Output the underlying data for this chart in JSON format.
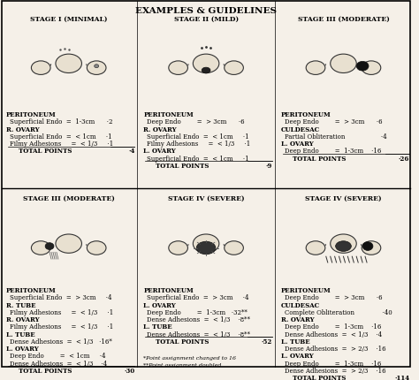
{
  "title": "EXAMPLES & GUIDELINES",
  "background_color": "#f5f0e8",
  "border_color": "#000000",
  "sections": [
    {
      "stage": "STAGE I (MINIMAL)",
      "col": 0,
      "row": 0,
      "text_lines": [
        {
          "text": "PERITONEUM",
          "bold": true,
          "indent": 0
        },
        {
          "text": "Superficial Endo  =  1-3cm      ·2",
          "bold": false,
          "indent": 1
        },
        {
          "text": "R. OVARY",
          "bold": true,
          "indent": 0
        },
        {
          "text": "Superficial Endo  =  < 1cm     ·1",
          "bold": false,
          "indent": 1
        },
        {
          "text": "Filmy Adhesions     =  < 1/3     ·1",
          "bold": false,
          "indent": 1
        },
        {
          "text": "TOTAL POINTS                         ·4",
          "bold": true,
          "indent": 2
        }
      ]
    },
    {
      "stage": "STAGE II (MILD)",
      "col": 1,
      "row": 0,
      "text_lines": [
        {
          "text": "PERITONEUM",
          "bold": true,
          "indent": 0
        },
        {
          "text": "Deep Endo        =  > 3cm      ·6",
          "bold": false,
          "indent": 1
        },
        {
          "text": "R. OVARY",
          "bold": true,
          "indent": 0
        },
        {
          "text": "Superficial Endo  =  < 1cm     ·1",
          "bold": false,
          "indent": 1
        },
        {
          "text": "Filmy Adhesions     =  < 1/3     ·1",
          "bold": false,
          "indent": 1
        },
        {
          "text": "L. OVARY",
          "bold": true,
          "indent": 0
        },
        {
          "text": "Superficial Endo  =  < 1cm     ·1",
          "bold": false,
          "indent": 1
        },
        {
          "text": "TOTAL POINTS                         ·9",
          "bold": true,
          "indent": 2
        }
      ]
    },
    {
      "stage": "STAGE III (MODERATE)",
      "col": 2,
      "row": 0,
      "text_lines": [
        {
          "text": "PERITONEUM",
          "bold": true,
          "indent": 0
        },
        {
          "text": "Deep Endo        =  > 3cm      ·6",
          "bold": false,
          "indent": 1
        },
        {
          "text": "CULDESAC",
          "bold": true,
          "indent": 0
        },
        {
          "text": "Partial Obliteration                  ·4",
          "bold": false,
          "indent": 1
        },
        {
          "text": "L. OVARY",
          "bold": true,
          "indent": 0
        },
        {
          "text": "Deep Endo        =  1-3cm    ·16",
          "bold": false,
          "indent": 1
        },
        {
          "text": "TOTAL POINTS                       ·26",
          "bold": true,
          "indent": 2
        }
      ]
    },
    {
      "stage": "STAGE III (MODERATE)",
      "col": 0,
      "row": 1,
      "text_lines": [
        {
          "text": "PERITONEUM",
          "bold": true,
          "indent": 0
        },
        {
          "text": "Superficial Endo  =  > 3cm     ·4",
          "bold": false,
          "indent": 1
        },
        {
          "text": "R. TUBE",
          "bold": true,
          "indent": 0
        },
        {
          "text": "Filmy Adhesions     =  < 1/3     ·1",
          "bold": false,
          "indent": 1
        },
        {
          "text": "R. OVARY",
          "bold": true,
          "indent": 0
        },
        {
          "text": "Filmy Adhesions     =  < 1/3     ·1",
          "bold": false,
          "indent": 1
        },
        {
          "text": "L. TUBE",
          "bold": true,
          "indent": 0
        },
        {
          "text": "Dense Adhesions  =  < 1/3   ·16*",
          "bold": false,
          "indent": 1
        },
        {
          "text": "L. OVARY",
          "bold": true,
          "indent": 0
        },
        {
          "text": "Deep Endo        =  < 1cm     ·4",
          "bold": false,
          "indent": 1
        },
        {
          "text": "Dense Adhesions  =  < 1/3    ·4",
          "bold": false,
          "indent": 1
        },
        {
          "text": "TOTAL POINTS                       ·30",
          "bold": true,
          "indent": 2
        }
      ]
    },
    {
      "stage": "STAGE IV (SEVERE)",
      "col": 1,
      "row": 1,
      "text_lines": [
        {
          "text": "PERITONEUM",
          "bold": true,
          "indent": 0
        },
        {
          "text": "Superficial Endo  =  > 3cm     ·4",
          "bold": false,
          "indent": 1
        },
        {
          "text": "L. OVARY",
          "bold": true,
          "indent": 0
        },
        {
          "text": "Deep Endo        =  1-3cm   ·32**",
          "bold": false,
          "indent": 1
        },
        {
          "text": "Dense Adhesions  =  < 1/3    ·8**",
          "bold": false,
          "indent": 1
        },
        {
          "text": "L. TUBE",
          "bold": true,
          "indent": 0
        },
        {
          "text": "Dense Adhesions  =  < 1/3    ·8**",
          "bold": false,
          "indent": 1
        },
        {
          "text": "TOTAL POINTS                       ·52",
          "bold": true,
          "indent": 2
        }
      ]
    },
    {
      "stage": "STAGE IV (SEVERE)",
      "col": 2,
      "row": 1,
      "text_lines": [
        {
          "text": "PERITONEUM",
          "bold": true,
          "indent": 0
        },
        {
          "text": "Deep Endo        =  > 3cm      ·6",
          "bold": false,
          "indent": 1
        },
        {
          "text": "CULDESAC",
          "bold": true,
          "indent": 0
        },
        {
          "text": "Complete Obliteration              ·40",
          "bold": false,
          "indent": 1
        },
        {
          "text": "R. OVARY",
          "bold": true,
          "indent": 0
        },
        {
          "text": "Deep Endo        =  1-3cm    ·16",
          "bold": false,
          "indent": 1
        },
        {
          "text": "Dense Adhesions  =  < 1/3    ·4",
          "bold": false,
          "indent": 1
        },
        {
          "text": "L. TUBE",
          "bold": true,
          "indent": 0
        },
        {
          "text": "Dense Adhesions  =  > 2/3    ·16",
          "bold": false,
          "indent": 1
        },
        {
          "text": "L. OVARY",
          "bold": true,
          "indent": 0
        },
        {
          "text": "Deep Endo        =  1-3cm    ·16",
          "bold": false,
          "indent": 1
        },
        {
          "text": "Dense Adhesions  =  > 2/3    ·16",
          "bold": false,
          "indent": 1
        },
        {
          "text": "TOTAL POINTS                     ·114",
          "bold": true,
          "indent": 2
        }
      ]
    }
  ],
  "footnotes": [
    "*Point assignment changed to 16",
    "**Point assignment doubled"
  ]
}
